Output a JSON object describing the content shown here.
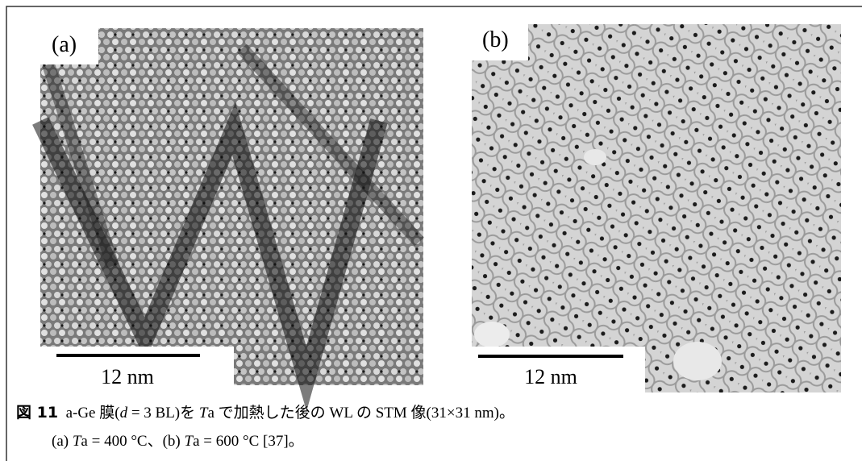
{
  "figure": {
    "panels": [
      {
        "label": "(a)",
        "scale_bar": "12 nm"
      },
      {
        "label": "(b)",
        "scale_bar": "12 nm"
      }
    ],
    "caption": {
      "number": "図 11",
      "line1": [
        "a-Ge 膜(",
        "d",
        " = 3 BL)を ",
        "T",
        "a で加熱した後の WL の STM 像(31×31 nm)。"
      ],
      "line2": [
        "(a) ",
        "T",
        "a = 400 °C、(b) ",
        "T",
        "a = 600 °C [37]。"
      ]
    }
  }
}
